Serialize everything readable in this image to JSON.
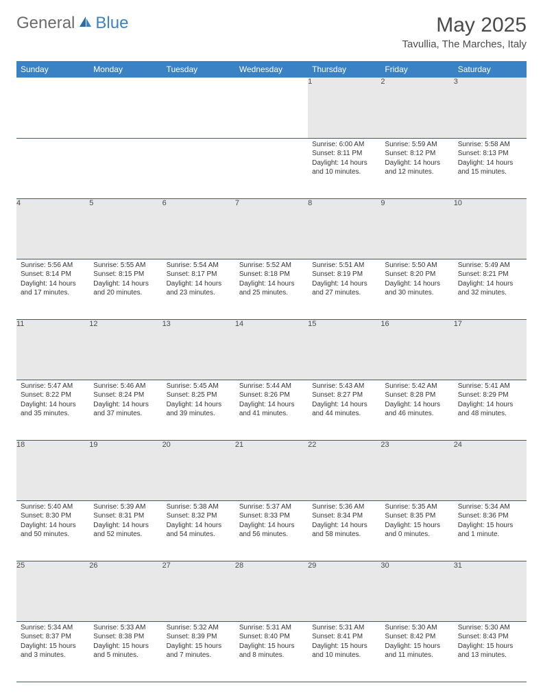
{
  "logo": {
    "text_general": "General",
    "text_blue": "Blue",
    "color_general": "#6b6b6b",
    "color_blue": "#3b82c4"
  },
  "title": "May 2025",
  "location": "Tavullia, The Marches, Italy",
  "colors": {
    "header_bg": "#3b82c4",
    "header_text": "#ffffff",
    "daynum_bg": "#e8e8e8",
    "row_border": "#3b5a7a",
    "body_text": "#333333",
    "title_text": "#4a4a4a"
  },
  "weekdays": [
    "Sunday",
    "Monday",
    "Tuesday",
    "Wednesday",
    "Thursday",
    "Friday",
    "Saturday"
  ],
  "weeks": [
    [
      null,
      null,
      null,
      null,
      {
        "n": "1",
        "sunrise": "6:00 AM",
        "sunset": "8:11 PM",
        "daylight": "14 hours and 10 minutes."
      },
      {
        "n": "2",
        "sunrise": "5:59 AM",
        "sunset": "8:12 PM",
        "daylight": "14 hours and 12 minutes."
      },
      {
        "n": "3",
        "sunrise": "5:58 AM",
        "sunset": "8:13 PM",
        "daylight": "14 hours and 15 minutes."
      }
    ],
    [
      {
        "n": "4",
        "sunrise": "5:56 AM",
        "sunset": "8:14 PM",
        "daylight": "14 hours and 17 minutes."
      },
      {
        "n": "5",
        "sunrise": "5:55 AM",
        "sunset": "8:15 PM",
        "daylight": "14 hours and 20 minutes."
      },
      {
        "n": "6",
        "sunrise": "5:54 AM",
        "sunset": "8:17 PM",
        "daylight": "14 hours and 23 minutes."
      },
      {
        "n": "7",
        "sunrise": "5:52 AM",
        "sunset": "8:18 PM",
        "daylight": "14 hours and 25 minutes."
      },
      {
        "n": "8",
        "sunrise": "5:51 AM",
        "sunset": "8:19 PM",
        "daylight": "14 hours and 27 minutes."
      },
      {
        "n": "9",
        "sunrise": "5:50 AM",
        "sunset": "8:20 PM",
        "daylight": "14 hours and 30 minutes."
      },
      {
        "n": "10",
        "sunrise": "5:49 AM",
        "sunset": "8:21 PM",
        "daylight": "14 hours and 32 minutes."
      }
    ],
    [
      {
        "n": "11",
        "sunrise": "5:47 AM",
        "sunset": "8:22 PM",
        "daylight": "14 hours and 35 minutes."
      },
      {
        "n": "12",
        "sunrise": "5:46 AM",
        "sunset": "8:24 PM",
        "daylight": "14 hours and 37 minutes."
      },
      {
        "n": "13",
        "sunrise": "5:45 AM",
        "sunset": "8:25 PM",
        "daylight": "14 hours and 39 minutes."
      },
      {
        "n": "14",
        "sunrise": "5:44 AM",
        "sunset": "8:26 PM",
        "daylight": "14 hours and 41 minutes."
      },
      {
        "n": "15",
        "sunrise": "5:43 AM",
        "sunset": "8:27 PM",
        "daylight": "14 hours and 44 minutes."
      },
      {
        "n": "16",
        "sunrise": "5:42 AM",
        "sunset": "8:28 PM",
        "daylight": "14 hours and 46 minutes."
      },
      {
        "n": "17",
        "sunrise": "5:41 AM",
        "sunset": "8:29 PM",
        "daylight": "14 hours and 48 minutes."
      }
    ],
    [
      {
        "n": "18",
        "sunrise": "5:40 AM",
        "sunset": "8:30 PM",
        "daylight": "14 hours and 50 minutes."
      },
      {
        "n": "19",
        "sunrise": "5:39 AM",
        "sunset": "8:31 PM",
        "daylight": "14 hours and 52 minutes."
      },
      {
        "n": "20",
        "sunrise": "5:38 AM",
        "sunset": "8:32 PM",
        "daylight": "14 hours and 54 minutes."
      },
      {
        "n": "21",
        "sunrise": "5:37 AM",
        "sunset": "8:33 PM",
        "daylight": "14 hours and 56 minutes."
      },
      {
        "n": "22",
        "sunrise": "5:36 AM",
        "sunset": "8:34 PM",
        "daylight": "14 hours and 58 minutes."
      },
      {
        "n": "23",
        "sunrise": "5:35 AM",
        "sunset": "8:35 PM",
        "daylight": "15 hours and 0 minutes."
      },
      {
        "n": "24",
        "sunrise": "5:34 AM",
        "sunset": "8:36 PM",
        "daylight": "15 hours and 1 minute."
      }
    ],
    [
      {
        "n": "25",
        "sunrise": "5:34 AM",
        "sunset": "8:37 PM",
        "daylight": "15 hours and 3 minutes."
      },
      {
        "n": "26",
        "sunrise": "5:33 AM",
        "sunset": "8:38 PM",
        "daylight": "15 hours and 5 minutes."
      },
      {
        "n": "27",
        "sunrise": "5:32 AM",
        "sunset": "8:39 PM",
        "daylight": "15 hours and 7 minutes."
      },
      {
        "n": "28",
        "sunrise": "5:31 AM",
        "sunset": "8:40 PM",
        "daylight": "15 hours and 8 minutes."
      },
      {
        "n": "29",
        "sunrise": "5:31 AM",
        "sunset": "8:41 PM",
        "daylight": "15 hours and 10 minutes."
      },
      {
        "n": "30",
        "sunrise": "5:30 AM",
        "sunset": "8:42 PM",
        "daylight": "15 hours and 11 minutes."
      },
      {
        "n": "31",
        "sunrise": "5:30 AM",
        "sunset": "8:43 PM",
        "daylight": "15 hours and 13 minutes."
      }
    ]
  ],
  "labels": {
    "sunrise": "Sunrise:",
    "sunset": "Sunset:",
    "daylight": "Daylight:"
  }
}
